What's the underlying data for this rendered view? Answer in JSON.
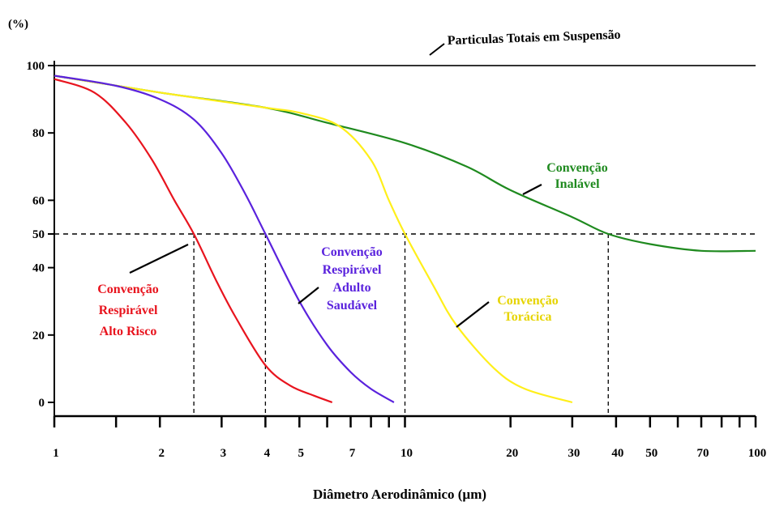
{
  "chart_data": {
    "type": "line",
    "title": "",
    "ylabel": "(%)",
    "xlabel": "Diâmetro Aerodinâmico (µm)",
    "x_scale": "log",
    "xlim": [
      1,
      100
    ],
    "ylim": [
      -5,
      100
    ],
    "y_ticks": [
      0,
      20,
      40,
      50,
      60,
      80,
      100
    ],
    "x_ticks": [
      1,
      2,
      3,
      4,
      5,
      7,
      10,
      20,
      30,
      40,
      50,
      70,
      100
    ],
    "x_minor_ticks": [
      1.5,
      6,
      8,
      9,
      60,
      80,
      90
    ],
    "reference_line": {
      "y": 50,
      "style": "dashed"
    },
    "top_line": {
      "y": 100,
      "label": "Particulas Totais em Suspensão"
    },
    "series": [
      {
        "name": "Convenção Inalável",
        "label_lines": [
          "Convenção",
          "Inalável"
        ],
        "color": "#1f8a1f",
        "points": [
          [
            1,
            97
          ],
          [
            2,
            92
          ],
          [
            4,
            87.5
          ],
          [
            6,
            83
          ],
          [
            10,
            77
          ],
          [
            15,
            70
          ],
          [
            20,
            63
          ],
          [
            30,
            55
          ],
          [
            38,
            50
          ],
          [
            50,
            47
          ],
          [
            70,
            45
          ],
          [
            100,
            45
          ]
        ],
        "median_x": 38
      },
      {
        "name": "Convenção Torácica",
        "label_lines": [
          "Convenção",
          "Torácica"
        ],
        "color": "#ffef1a",
        "points": [
          [
            1,
            97
          ],
          [
            2,
            92
          ],
          [
            4,
            87.5
          ],
          [
            5,
            86
          ],
          [
            6.5,
            82
          ],
          [
            8,
            72
          ],
          [
            9,
            60
          ],
          [
            10,
            50
          ],
          [
            12,
            35
          ],
          [
            14,
            23
          ],
          [
            18,
            10
          ],
          [
            22,
            4
          ],
          [
            30,
            0
          ]
        ],
        "median_x": 10
      },
      {
        "name": "Convenção Respirável Adulto Saudável",
        "label_lines": [
          "Convenção",
          "Respirável",
          "Adulto",
          "Saudável"
        ],
        "color": "#5a22dd",
        "points": [
          [
            1,
            97
          ],
          [
            1.5,
            94
          ],
          [
            2,
            90
          ],
          [
            2.5,
            84
          ],
          [
            3,
            74
          ],
          [
            3.5,
            62
          ],
          [
            4,
            50
          ],
          [
            5,
            30
          ],
          [
            6,
            17
          ],
          [
            7,
            9
          ],
          [
            8,
            4
          ],
          [
            9.3,
            0
          ]
        ],
        "median_x": 4
      },
      {
        "name": "Convenção Respirável Alto Risco",
        "label_lines": [
          "Convenção",
          "Respirável",
          "Alto Risco"
        ],
        "color": "#e8141e",
        "points": [
          [
            1,
            96
          ],
          [
            1.3,
            92
          ],
          [
            1.6,
            83
          ],
          [
            1.9,
            72
          ],
          [
            2.2,
            60
          ],
          [
            2.5,
            50
          ],
          [
            2.9,
            36
          ],
          [
            3.3,
            25
          ],
          [
            4,
            11
          ],
          [
            4.7,
            5
          ],
          [
            5.5,
            2
          ],
          [
            6.2,
            0
          ]
        ],
        "median_x": 2.5
      }
    ]
  }
}
